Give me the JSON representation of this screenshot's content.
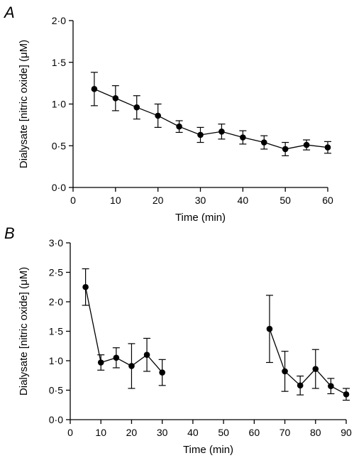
{
  "chart_data": [
    {
      "type": "line",
      "panel_label": "A",
      "xlabel": "Time (min)",
      "ylabel": "Dialysate [nitric oxide] (μM)",
      "xlim": [
        0,
        60
      ],
      "ylim": [
        0,
        2
      ],
      "xticks": [
        0,
        10,
        20,
        30,
        40,
        50,
        60
      ],
      "xtick_labels": [
        "0",
        "10",
        "20",
        "30",
        "40",
        "50",
        "60"
      ],
      "yticks": [
        0,
        0.5,
        1,
        1.5,
        2
      ],
      "ytick_labels": [
        "0·0",
        "0·5",
        "1·0",
        "1·5",
        "2·0"
      ],
      "grid": false,
      "series": [
        {
          "x": [
            5,
            10,
            15,
            20,
            25,
            30,
            35,
            40,
            45,
            50,
            55,
            60
          ],
          "y": [
            1.18,
            1.07,
            0.96,
            0.86,
            0.73,
            0.63,
            0.67,
            0.6,
            0.54,
            0.46,
            0.51,
            0.48
          ],
          "err": [
            0.2,
            0.15,
            0.14,
            0.14,
            0.07,
            0.09,
            0.09,
            0.08,
            0.08,
            0.08,
            0.06,
            0.07
          ],
          "segments": [
            [
              0,
              11
            ]
          ]
        }
      ]
    },
    {
      "type": "line",
      "panel_label": "B",
      "xlabel": "Time (min)",
      "ylabel": "Dialysate [nitric oxide] (μM)",
      "xlim": [
        0,
        90
      ],
      "ylim": [
        0,
        3
      ],
      "xticks": [
        0,
        10,
        20,
        30,
        40,
        50,
        60,
        70,
        80,
        90
      ],
      "xtick_labels": [
        "0",
        "10",
        "20",
        "30",
        "40",
        "50",
        "60",
        "70",
        "80",
        "90"
      ],
      "yticks": [
        0,
        0.5,
        1,
        1.5,
        2,
        2.5,
        3
      ],
      "ytick_labels": [
        "0·0",
        "0·5",
        "1·0",
        "1·5",
        "2·0",
        "2·5",
        "3·0"
      ],
      "grid": false,
      "series": [
        {
          "x": [
            5,
            10,
            15,
            20,
            25,
            30,
            65,
            70,
            75,
            80,
            85,
            90
          ],
          "y": [
            2.25,
            0.97,
            1.05,
            0.91,
            1.1,
            0.8,
            1.54,
            0.82,
            0.58,
            0.86,
            0.57,
            0.43
          ],
          "err": [
            0.31,
            0.13,
            0.17,
            0.38,
            0.28,
            0.22,
            0.57,
            0.34,
            0.16,
            0.33,
            0.13,
            0.1
          ],
          "segments": [
            [
              0,
              5
            ],
            [
              6,
              11
            ]
          ]
        }
      ]
    }
  ]
}
